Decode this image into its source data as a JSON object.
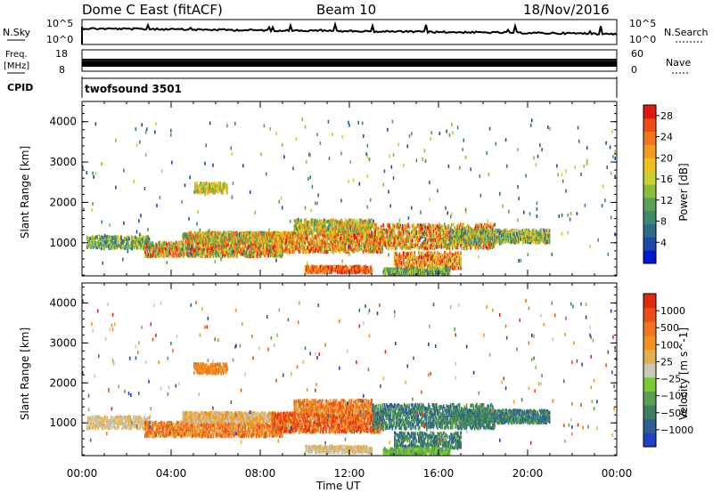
{
  "header": {
    "radar_title": "Dome C East (fitACF)",
    "beam_label": "Beam 10",
    "date_label": "18/Nov/2016"
  },
  "noise_panel": {
    "left_label": "N.Sky",
    "right_label": "N.Search",
    "left_ticks": [
      "10^5",
      "10^0"
    ],
    "right_ticks": [
      "10^5",
      "10^0"
    ]
  },
  "freq_panel": {
    "left_label_1": "Freq.",
    "left_label_2": "[MHz]",
    "left_ticks": [
      "18",
      "8"
    ],
    "right_label": "Nave",
    "right_ticks": [
      "60",
      "0"
    ]
  },
  "cpid_panel": {
    "label": "CPID",
    "program_name": "twofsound 3501"
  },
  "chart_data": [
    {
      "type": "heatmap",
      "panel": "power",
      "ylabel": "Slant Range [km]",
      "ylim": [
        180,
        4500
      ],
      "yticks": [
        "1000",
        "2000",
        "3000",
        "4000"
      ],
      "xlim_hours": [
        0,
        24
      ],
      "colorbar": {
        "label": "Power [dB]",
        "ticks": [
          "4",
          "8",
          "12",
          "16",
          "20",
          "24",
          "28"
        ],
        "colors": [
          "#0018d0",
          "#2048a8",
          "#2e6a8a",
          "#3f8a6c",
          "#5aa055",
          "#8cbc3c",
          "#c8d22c",
          "#f0c020",
          "#f59a1c",
          "#f2761a",
          "#ec4c16",
          "#e01810"
        ]
      }
    },
    {
      "type": "heatmap",
      "panel": "velocity",
      "ylabel": "Slant Range [km]",
      "ylim": [
        180,
        4500
      ],
      "yticks": [
        "1000",
        "2000",
        "3000",
        "4000"
      ],
      "xlim_hours": [
        0,
        24
      ],
      "colorbar": {
        "label": "Velocity  [m s^-1]",
        "ticks": [
          "1000",
          "500",
          "100",
          "25",
          "−25",
          "−100",
          "−500",
          "−1000"
        ],
        "colors": [
          "#2040c8",
          "#2f5e96",
          "#3c8060",
          "#5aa050",
          "#7cc832",
          "#c8c8bc",
          "#e0b052",
          "#f2941e",
          "#ef741c",
          "#ea5016",
          "#e02a10"
        ]
      }
    }
  ],
  "x_axis": {
    "tick_labels": [
      "00:00",
      "04:00",
      "08:00",
      "12:00",
      "16:00",
      "20:00",
      "00:00"
    ],
    "label": "Time UT"
  }
}
